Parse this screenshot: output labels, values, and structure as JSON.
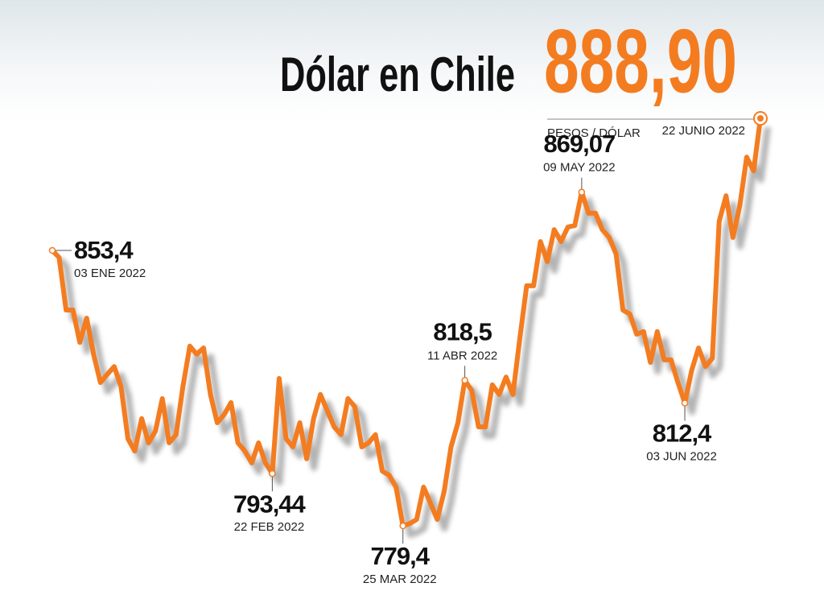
{
  "chart_data": {
    "type": "line",
    "title": "Dólar en Chile",
    "unit": "PESOS / DÓLAR",
    "color": "#f47c20",
    "categories": [
      "03 ENE 2022",
      null,
      null,
      null,
      null,
      null,
      null,
      null,
      null,
      null,
      null,
      null,
      null,
      null,
      null,
      null,
      null,
      null,
      null,
      null,
      null,
      null,
      null,
      null,
      null,
      null,
      null,
      null,
      null,
      null,
      null,
      null,
      "22 FEB 2022",
      null,
      null,
      null,
      null,
      null,
      null,
      null,
      null,
      null,
      null,
      null,
      null,
      null,
      null,
      null,
      null,
      null,
      null,
      "25 MAR 2022",
      null,
      null,
      null,
      null,
      null,
      null,
      null,
      null,
      "11 ABR 2022",
      null,
      null,
      null,
      null,
      null,
      null,
      null,
      null,
      null,
      null,
      null,
      null,
      null,
      null,
      null,
      null,
      "09 MAY 2022",
      null,
      null,
      null,
      null,
      null,
      null,
      null,
      null,
      null,
      null,
      null,
      null,
      null,
      null,
      "03 JUN 2022",
      null,
      null,
      null,
      null,
      null,
      null,
      null,
      null,
      null,
      null,
      "22 JUNIO 2022"
    ],
    "values": [
      853.4,
      851.5,
      837.4,
      837.4,
      828.7,
      835.2,
      825.5,
      817.9,
      820.1,
      822.2,
      816.8,
      802.8,
      799.5,
      808.2,
      801.7,
      804.9,
      813.6,
      801.7,
      803.9,
      816.8,
      827.7,
      825.5,
      827.2,
      814.7,
      807.1,
      809.3,
      812.5,
      801.7,
      799.5,
      796.3,
      801.7,
      796.3,
      793.44,
      819.0,
      802.8,
      800.6,
      807.1,
      797.4,
      808.2,
      814.7,
      810.3,
      806.0,
      803.9,
      813.6,
      811.4,
      800.6,
      801.7,
      803.9,
      794.1,
      793.0,
      789.8,
      779.4,
      780.0,
      781.1,
      789.8,
      785.5,
      781.1,
      788.7,
      800.6,
      807.1,
      818.5,
      815.8,
      806.0,
      806.0,
      817.3,
      814.7,
      819.4,
      814.7,
      829.8,
      843.9,
      843.9,
      855.8,
      850.4,
      859.0,
      855.8,
      859.7,
      860.1,
      869.07,
      863.4,
      863.4,
      859.0,
      856.9,
      852.5,
      837.4,
      836.3,
      830.9,
      831.6,
      823.3,
      831.6,
      824.0,
      824.0,
      817.9,
      812.4,
      821.2,
      827.2,
      822.2,
      824.4,
      861.2,
      868.1,
      856.9,
      865.5,
      878.5,
      874.8,
      888.9
    ],
    "value_labels": [
      "853,4",
      null,
      null,
      null,
      null,
      null,
      null,
      null,
      null,
      null,
      null,
      null,
      null,
      null,
      null,
      null,
      null,
      null,
      null,
      null,
      null,
      null,
      null,
      null,
      null,
      null,
      null,
      null,
      null,
      null,
      null,
      null,
      "793,44",
      null,
      null,
      null,
      null,
      null,
      null,
      null,
      null,
      null,
      null,
      null,
      null,
      null,
      null,
      null,
      null,
      null,
      null,
      "779,4",
      null,
      null,
      null,
      null,
      null,
      null,
      null,
      null,
      "818,5",
      null,
      null,
      null,
      null,
      null,
      null,
      null,
      null,
      null,
      null,
      null,
      null,
      null,
      null,
      null,
      null,
      "869,07",
      null,
      null,
      null,
      null,
      null,
      null,
      null,
      null,
      null,
      null,
      null,
      null,
      null,
      null,
      "812,4",
      null,
      null,
      null,
      null,
      null,
      null,
      null,
      null,
      null,
      null,
      "888,90"
    ]
  }
}
